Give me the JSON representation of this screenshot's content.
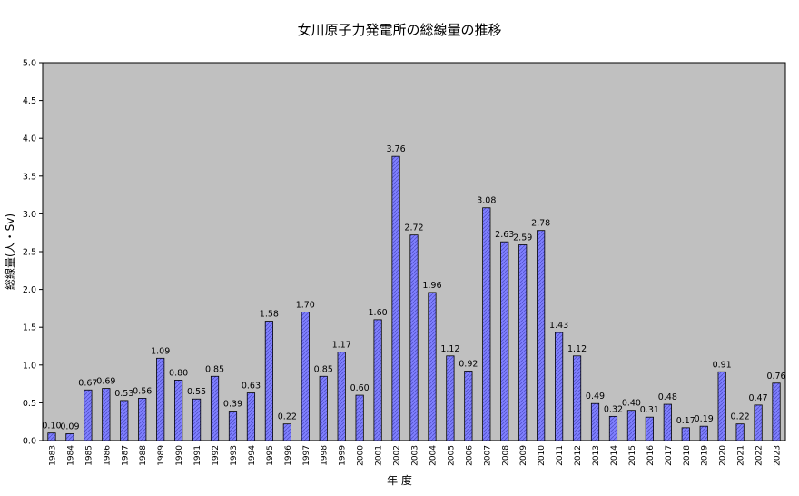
{
  "chart_data": {
    "type": "bar",
    "title": "女川原子力発電所の総線量の推移",
    "xlabel": "年 度",
    "ylabel": "総線量(人・Sv)",
    "ylim": [
      0,
      5.0
    ],
    "yticks": [
      "0.0",
      "0.5",
      "1.0",
      "1.5",
      "2.0",
      "2.5",
      "3.0",
      "3.5",
      "4.0",
      "4.5",
      "5.0"
    ],
    "categories": [
      "1983",
      "1984",
      "1985",
      "1986",
      "1987",
      "1988",
      "1989",
      "1990",
      "1991",
      "1992",
      "1993",
      "1994",
      "1995",
      "1996",
      "1997",
      "1998",
      "1999",
      "2000",
      "2001",
      "2002",
      "2003",
      "2004",
      "2005",
      "2006",
      "2007",
      "2008",
      "2009",
      "2010",
      "2011",
      "2012",
      "2013",
      "2014",
      "2015",
      "2016",
      "2017",
      "2018",
      "2019",
      "2020",
      "2021",
      "2022",
      "2023"
    ],
    "values": [
      0.1,
      0.09,
      0.67,
      0.69,
      0.53,
      0.56,
      1.09,
      0.8,
      0.55,
      0.85,
      0.39,
      0.63,
      1.58,
      0.22,
      1.7,
      0.85,
      1.17,
      0.6,
      1.6,
      3.76,
      2.72,
      1.96,
      1.12,
      0.92,
      3.08,
      2.63,
      2.59,
      2.78,
      1.43,
      1.12,
      0.49,
      0.32,
      0.4,
      0.31,
      0.48,
      0.17,
      0.19,
      0.91,
      0.22,
      0.47,
      0.76
    ],
    "labels": [
      "0.10",
      "0.09",
      "0.67",
      "0.69",
      "0.53",
      "0.56",
      "1.09",
      "0.80",
      "0.55",
      "0.85",
      "0.39",
      "0.63",
      "1.58",
      "0.22",
      "1.70",
      "0.85",
      "1.17",
      "0.60",
      "1.60",
      "3.76",
      "2.72",
      "1.96",
      "1.12",
      "0.92",
      "3.08",
      "2.63",
      "2.59",
      "2.78",
      "1.43",
      "1.12",
      "0.49",
      "0.32",
      "0.40",
      "0.31",
      "0.48",
      "0.17",
      "0.19",
      "0.91",
      "0.22",
      "0.47",
      "0.76"
    ],
    "grid": false,
    "legend": "none"
  },
  "colors": {
    "plot_bg": "#c0c0c0",
    "bar_fill": "#8080ff",
    "bar_hatch": "#5050c8",
    "bar_stroke": "#000000",
    "axis": "#000000",
    "text": "#000000"
  }
}
